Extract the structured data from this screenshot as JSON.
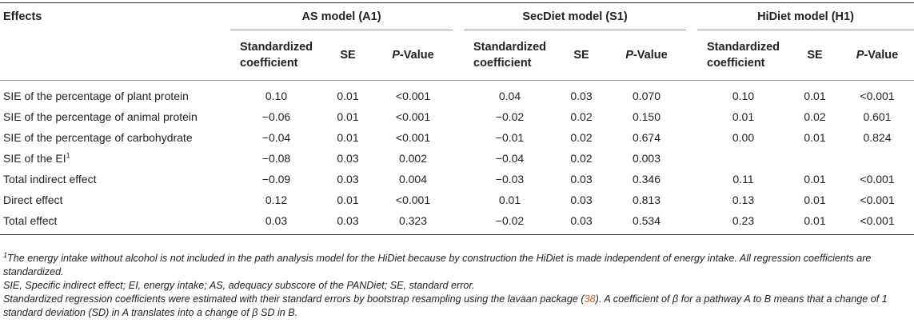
{
  "table": {
    "effects_header": "Effects",
    "groups": [
      {
        "title": "AS model (A1)"
      },
      {
        "title": "SecDiet model (S1)"
      },
      {
        "title": "HiDiet model (H1)"
      }
    ],
    "sub_headers": {
      "coef_line1": "Standardized",
      "coef_line2": "coefficient",
      "se": "SE",
      "p_italic": "P",
      "p_rest": "-Value"
    },
    "rows": [
      {
        "label": "SIE of the percentage of plant protein",
        "sup": "",
        "values": [
          "0.10",
          "0.01",
          "<0.001",
          "0.04",
          "0.03",
          "0.070",
          "0.10",
          "0.01",
          "<0.001"
        ]
      },
      {
        "label": "SIE of the percentage of animal protein",
        "sup": "",
        "values": [
          "−0.06",
          "0.01",
          "<0.001",
          "−0.02",
          "0.02",
          "0.150",
          "0.01",
          "0.02",
          "0.601"
        ]
      },
      {
        "label": "SIE of the percentage of carbohydrate",
        "sup": "",
        "values": [
          "−0.04",
          "0.01",
          "<0.001",
          "−0.01",
          "0.02",
          "0.674",
          "0.00",
          "0.01",
          "0.824"
        ]
      },
      {
        "label": "SIE of the EI",
        "sup": "1",
        "values": [
          "−0.08",
          "0.03",
          "0.002",
          "−0.04",
          "0.02",
          "0.003",
          "",
          "",
          ""
        ]
      },
      {
        "label": "Total indirect effect",
        "sup": "",
        "values": [
          "−0.09",
          "0.03",
          "0.004",
          "−0.03",
          "0.03",
          "0.346",
          "0.11",
          "0.01",
          "<0.001"
        ]
      },
      {
        "label": "Direct effect",
        "sup": "",
        "values": [
          "0.12",
          "0.01",
          "<0.001",
          "0.01",
          "0.03",
          "0.813",
          "0.13",
          "0.01",
          "<0.001"
        ]
      },
      {
        "label": "Total effect",
        "sup": "",
        "values": [
          "0.03",
          "0.03",
          "0.323",
          "−0.02",
          "0.03",
          "0.534",
          "0.23",
          "0.01",
          "<0.001"
        ]
      }
    ]
  },
  "notes": {
    "footnote_mark": "1",
    "footnote_text": "The energy intake without alcohol is not included in the path analysis model for the HiDiet because by construction the HiDiet is made independent of energy intake. All regression coefficients are standardized.",
    "abbreviations": "SIE, Specific indirect effect; EI, energy intake; AS, adequacy subscore of the PANDiet; SE, standard error.",
    "method_part1": "Standardized regression coefficients were estimated with their standard errors by bootstrap resampling using the lavaan package (",
    "method_ref": "38",
    "method_part2": "). A coefficient of β for a pathway A to B means that a change of 1 standard deviation (SD) in A translates into a change of β SD in B."
  }
}
